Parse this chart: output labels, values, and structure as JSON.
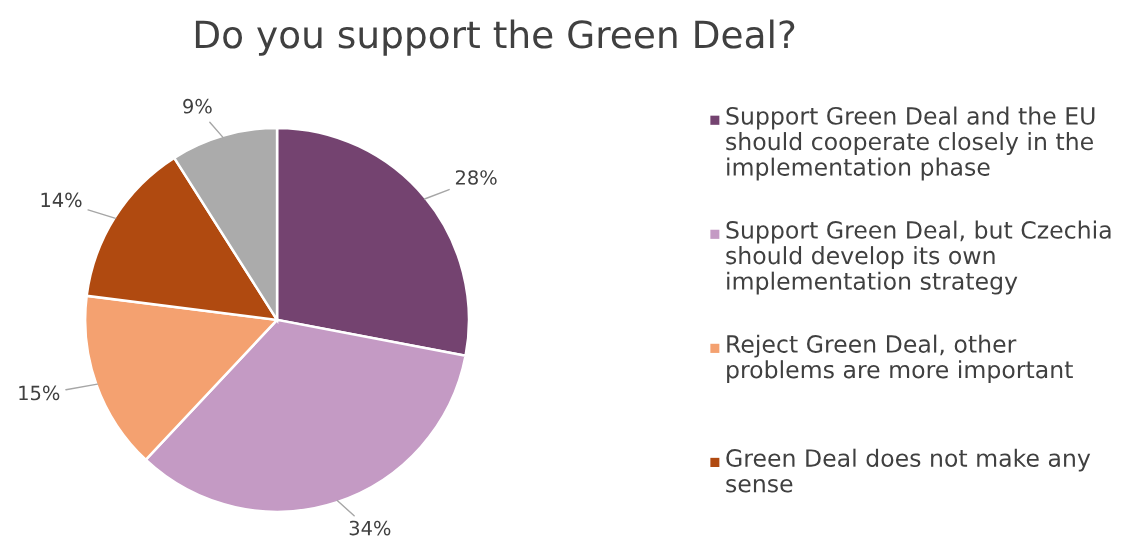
{
  "chart_data": {
    "type": "pie",
    "title": "Do you support the Green Deal?",
    "categories": [
      "Support Green Deal and the EU should cooperate closely in the implementation phase",
      "Support Green Deal, but Czechia should develop its own implementation strategy",
      "Reject Green Deal, other problems are more important",
      "Green Deal does not make any sense",
      null
    ],
    "values": [
      28,
      34,
      15,
      14,
      9
    ],
    "value_labels": [
      "28%",
      "34%",
      "15%",
      "14%",
      "9%"
    ],
    "colors": [
      "#744370",
      "#c49ac4",
      "#f4a170",
      "#b04a10",
      "#ababab"
    ],
    "legend": "right"
  }
}
